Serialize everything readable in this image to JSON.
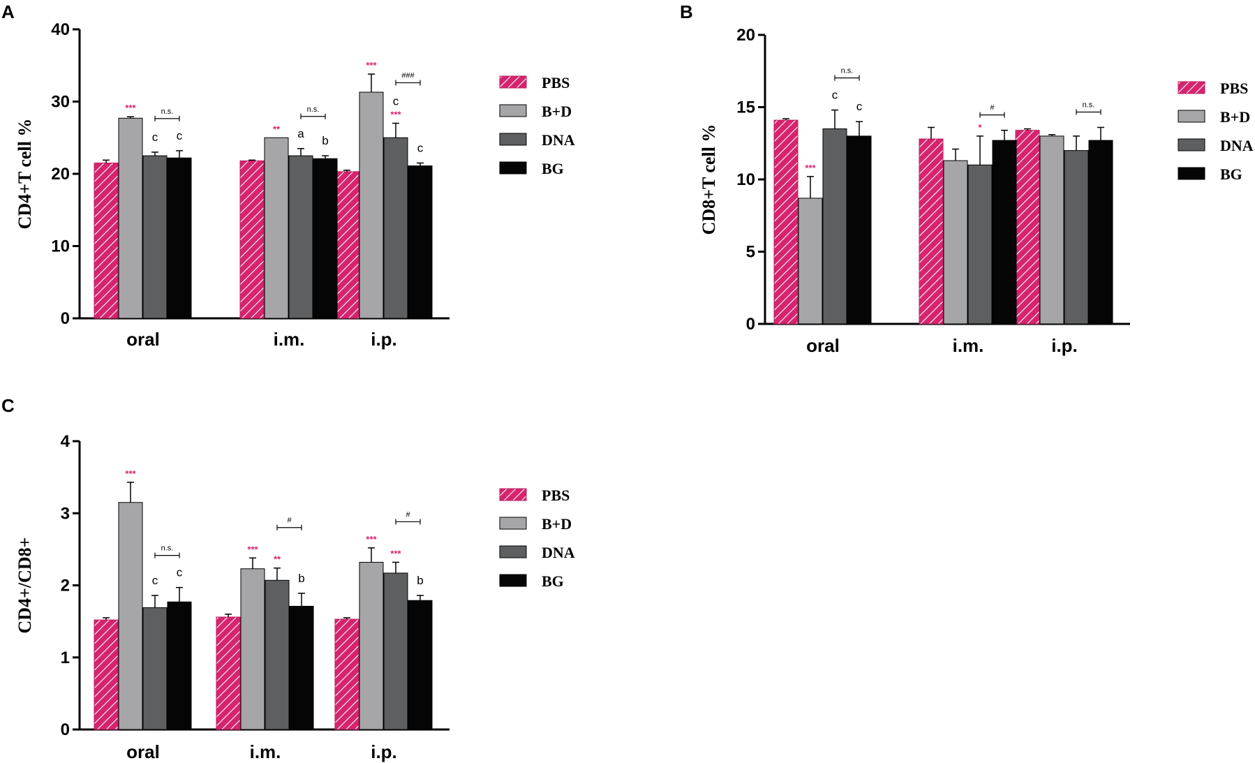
{
  "colors": {
    "PBS": "#d6246e",
    "B+D": "#a6a6a8",
    "DNA": "#5e5f61",
    "BG": "#050505",
    "significance": "#d6246e"
  },
  "chart_data": [
    {
      "panel": "A",
      "type": "bar",
      "ylabel": "CD4+T cell %",
      "ylim": [
        0,
        40
      ],
      "yticks": [
        "0",
        "10",
        "20",
        "30",
        "40"
      ],
      "categories": [
        "oral",
        "i.m.",
        "i.p."
      ],
      "legend": [
        "PBS",
        "B+D",
        "DNA",
        "BG"
      ],
      "series": [
        {
          "name": "PBS",
          "values": [
            21.5,
            21.8,
            20.3
          ],
          "errors": [
            0.4,
            0.1,
            0.2
          ]
        },
        {
          "name": "B+D",
          "values": [
            27.7,
            25.0,
            31.3
          ],
          "errors": [
            0.2,
            0.0,
            2.5
          ]
        },
        {
          "name": "DNA",
          "values": [
            22.5,
            22.5,
            25.0
          ],
          "errors": [
            0.5,
            1.0,
            2.0
          ]
        },
        {
          "name": "BG",
          "values": [
            22.2,
            22.1,
            21.1
          ],
          "errors": [
            1.0,
            0.4,
            0.4
          ]
        }
      ],
      "stars": [
        {
          "cat": 0,
          "series": 1,
          "text": "***"
        },
        {
          "cat": 1,
          "series": 1,
          "text": "**"
        },
        {
          "cat": 2,
          "series": 1,
          "text": "***"
        },
        {
          "cat": 2,
          "series": 2,
          "text": "***"
        }
      ],
      "letters": [
        {
          "cat": 0,
          "series": 2,
          "text": "c"
        },
        {
          "cat": 0,
          "series": 3,
          "text": "c"
        },
        {
          "cat": 1,
          "series": 2,
          "text": "a"
        },
        {
          "cat": 1,
          "series": 3,
          "text": "b"
        },
        {
          "cat": 2,
          "series": 2,
          "text": "c"
        },
        {
          "cat": 2,
          "series": 3,
          "text": "c"
        }
      ],
      "comparisons": [
        {
          "cat": 0,
          "text": "n.s."
        },
        {
          "cat": 1,
          "text": "n.s."
        },
        {
          "cat": 2,
          "text": "###"
        }
      ]
    },
    {
      "panel": "B",
      "type": "bar",
      "ylabel": "CD8+T cell %",
      "ylim": [
        0,
        20
      ],
      "yticks": [
        "0",
        "5",
        "10",
        "15",
        "20"
      ],
      "categories": [
        "oral",
        "i.m.",
        "i.p."
      ],
      "legend": [
        "PBS",
        "B+D",
        "DNA",
        "BG"
      ],
      "series": [
        {
          "name": "PBS",
          "values": [
            14.1,
            12.8,
            13.4
          ],
          "errors": [
            0.1,
            0.8,
            0.1
          ]
        },
        {
          "name": "B+D",
          "values": [
            8.7,
            11.3,
            13.0
          ],
          "errors": [
            1.5,
            0.8,
            0.1
          ]
        },
        {
          "name": "DNA",
          "values": [
            13.5,
            11.0,
            12.0
          ],
          "errors": [
            1.3,
            2.0,
            1.0
          ]
        },
        {
          "name": "BG",
          "values": [
            13.0,
            12.7,
            12.7
          ],
          "errors": [
            1.0,
            0.7,
            0.9
          ]
        }
      ],
      "stars": [
        {
          "cat": 0,
          "series": 1,
          "text": "***"
        },
        {
          "cat": 1,
          "series": 2,
          "text": "*"
        }
      ],
      "letters": [
        {
          "cat": 0,
          "series": 2,
          "text": "c"
        },
        {
          "cat": 0,
          "series": 3,
          "text": "c"
        }
      ],
      "comparisons": [
        {
          "cat": 0,
          "text": "n.s."
        },
        {
          "cat": 1,
          "text": "#"
        },
        {
          "cat": 2,
          "text": "n.s."
        }
      ]
    },
    {
      "panel": "C",
      "type": "bar",
      "ylabel": "CD4+/CD8+",
      "ylim": [
        0,
        4
      ],
      "yticks": [
        "0",
        "1",
        "2",
        "3",
        "4"
      ],
      "categories": [
        "oral",
        "i.m.",
        "i.p."
      ],
      "legend": [
        "PBS",
        "B+D",
        "DNA",
        "BG"
      ],
      "series": [
        {
          "name": "PBS",
          "values": [
            1.52,
            1.56,
            1.53
          ],
          "errors": [
            0.03,
            0.04,
            0.02
          ]
        },
        {
          "name": "B+D",
          "values": [
            3.15,
            2.23,
            2.32
          ],
          "errors": [
            0.28,
            0.15,
            0.2
          ]
        },
        {
          "name": "DNA",
          "values": [
            1.69,
            2.07,
            2.17
          ],
          "errors": [
            0.17,
            0.17,
            0.15
          ]
        },
        {
          "name": "BG",
          "values": [
            1.77,
            1.71,
            1.79
          ],
          "errors": [
            0.2,
            0.18,
            0.07
          ]
        }
      ],
      "stars": [
        {
          "cat": 0,
          "series": 1,
          "text": "***"
        },
        {
          "cat": 1,
          "series": 1,
          "text": "***"
        },
        {
          "cat": 1,
          "series": 2,
          "text": "**"
        },
        {
          "cat": 2,
          "series": 1,
          "text": "***"
        },
        {
          "cat": 2,
          "series": 2,
          "text": "***"
        }
      ],
      "letters": [
        {
          "cat": 0,
          "series": 2,
          "text": "c"
        },
        {
          "cat": 0,
          "series": 3,
          "text": "c"
        },
        {
          "cat": 1,
          "series": 3,
          "text": "b"
        },
        {
          "cat": 2,
          "series": 3,
          "text": "b"
        }
      ],
      "comparisons": [
        {
          "cat": 0,
          "text": "n.s."
        },
        {
          "cat": 1,
          "text": "#"
        },
        {
          "cat": 2,
          "text": "#"
        }
      ]
    }
  ]
}
